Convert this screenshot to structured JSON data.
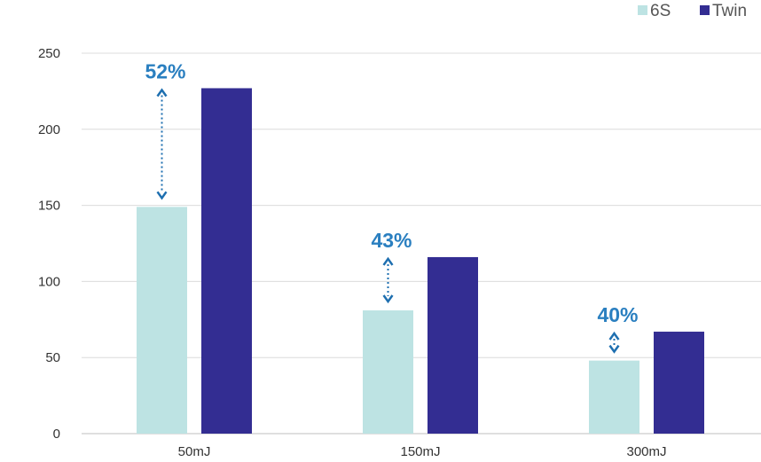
{
  "chart_data": {
    "type": "bar",
    "title": "",
    "xlabel": "",
    "ylabel": "",
    "categories": [
      "50mJ",
      "150mJ",
      "300mJ"
    ],
    "series": [
      {
        "name": "6S",
        "values": [
          149,
          81,
          48
        ],
        "color": "#bde3e3"
      },
      {
        "name": "Twin",
        "values": [
          227,
          116,
          67
        ],
        "color": "#332d92"
      }
    ],
    "annotations": [
      "52%",
      "43%",
      "40%"
    ],
    "ylim": [
      0,
      250
    ],
    "yticks": [
      0,
      50,
      100,
      150,
      200,
      250
    ],
    "grid": true,
    "legend_position": "top-right",
    "annotation_color": "#2a7fc0",
    "arrow_color": "#1e6fb0"
  }
}
